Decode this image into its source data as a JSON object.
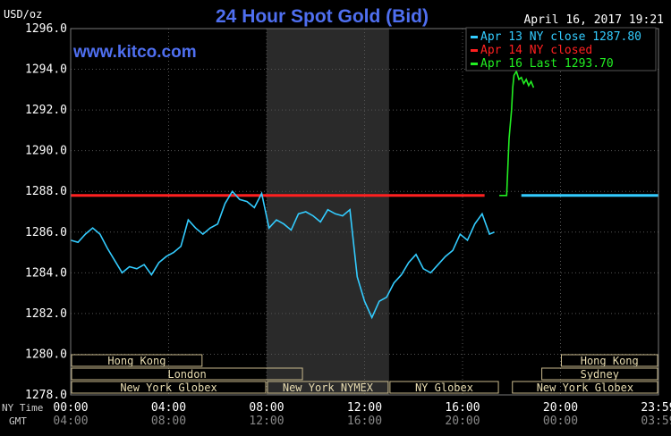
{
  "header": {
    "unit": "USD/oz",
    "title": "24 Hour Spot Gold (Bid)",
    "timestamp": "April 16, 2017 19:21",
    "watermark": "www.kitco.com"
  },
  "legend": [
    {
      "label": "Apr 13 NY close 1287.80",
      "color": "#33ccff"
    },
    {
      "label": "Apr 14 NY closed",
      "color": "#ff2020"
    },
    {
      "label": "Apr 16 Last 1293.70",
      "color": "#22ee22"
    }
  ],
  "axis_row_labels": {
    "ny_time": "NY Time",
    "gmt": "GMT"
  },
  "sessions": [
    {
      "label": "Hong Kong",
      "row": 0
    },
    {
      "label": "London",
      "row": 1
    },
    {
      "label": "New York Globex",
      "row": 2
    },
    {
      "label": "New York NYMEX",
      "row": 2
    },
    {
      "label": "NY Globex",
      "row": 2
    },
    {
      "label": "Hong Kong",
      "row": 0
    },
    {
      "label": "Sydney",
      "row": 1
    },
    {
      "label": "New York Globex",
      "row": 2
    }
  ],
  "chart_data": {
    "type": "line",
    "title": "24 Hour Spot Gold (Bid)",
    "ylabel": "USD/oz",
    "ylim": [
      1278.0,
      1296.0
    ],
    "xlim": [
      0,
      24
    ],
    "y_ticks": [
      "1278.0",
      "1280.0",
      "1282.0",
      "1284.0",
      "1286.0",
      "1288.0",
      "1290.0",
      "1292.0",
      "1294.0",
      "1296.0"
    ],
    "x_ticks": [
      {
        "ny": "00:00",
        "gmt": "04:00"
      },
      {
        "ny": "04:00",
        "gmt": "08:00"
      },
      {
        "ny": "08:00",
        "gmt": "12:00"
      },
      {
        "ny": "12:00",
        "gmt": "16:00"
      },
      {
        "ny": "16:00",
        "gmt": "20:00"
      },
      {
        "ny": "20:00",
        "gmt": "00:00"
      },
      {
        "ny": "23:59",
        "gmt": "03:59"
      }
    ],
    "shaded_region": [
      8.0,
      13.0
    ],
    "grid": true,
    "reference_lines": [
      {
        "name": "Apr 13 NY close",
        "value": 1287.8,
        "color": "#ff2020",
        "from": 0,
        "to": 16.9
      },
      {
        "name": "Apr 13 NY close",
        "value": 1287.8,
        "color": "#33ccff",
        "from": 18.4,
        "to": 24
      }
    ],
    "series": [
      {
        "name": "Apr 13 NY close 1287.80",
        "color": "#33ccff",
        "x": [
          0,
          0.3,
          0.6,
          0.9,
          1.2,
          1.5,
          1.8,
          2.1,
          2.4,
          2.7,
          3.0,
          3.3,
          3.6,
          3.9,
          4.2,
          4.5,
          4.8,
          5.1,
          5.4,
          5.7,
          6.0,
          6.3,
          6.6,
          6.9,
          7.2,
          7.5,
          7.8,
          8.1,
          8.4,
          8.7,
          9.0,
          9.3,
          9.6,
          9.9,
          10.2,
          10.5,
          10.8,
          11.1,
          11.4,
          11.7,
          12.0,
          12.3,
          12.6,
          12.9,
          13.2,
          13.5,
          13.8,
          14.1,
          14.4,
          14.7,
          15.0,
          15.3,
          15.6,
          15.9,
          16.2,
          16.5,
          16.8,
          17.1,
          17.3
        ],
        "values": [
          1285.6,
          1285.5,
          1285.9,
          1286.2,
          1285.9,
          1285.2,
          1284.6,
          1284.0,
          1284.3,
          1284.2,
          1284.4,
          1283.9,
          1284.5,
          1284.8,
          1285.0,
          1285.3,
          1286.6,
          1286.2,
          1285.9,
          1286.2,
          1286.4,
          1287.4,
          1288.0,
          1287.6,
          1287.5,
          1287.2,
          1287.9,
          1286.2,
          1286.6,
          1286.4,
          1286.1,
          1286.9,
          1287.0,
          1286.8,
          1286.5,
          1287.1,
          1286.9,
          1286.8,
          1287.1,
          1283.8,
          1282.6,
          1281.8,
          1282.6,
          1282.8,
          1283.5,
          1283.9,
          1284.5,
          1284.9,
          1284.2,
          1284.0,
          1284.4,
          1284.8,
          1285.1,
          1285.9,
          1285.6,
          1286.4,
          1286.9,
          1285.9,
          1286.0
        ]
      },
      {
        "name": "Apr 16 Last 1293.70",
        "color": "#22ee22",
        "x": [
          17.5,
          17.8,
          17.9,
          18.0,
          18.05,
          18.1,
          18.2,
          18.3,
          18.4,
          18.5,
          18.6,
          18.7,
          18.8,
          18.9
        ],
        "values": [
          1287.8,
          1287.8,
          1290.6,
          1292.0,
          1293.1,
          1293.7,
          1293.9,
          1293.5,
          1293.6,
          1293.3,
          1293.5,
          1293.2,
          1293.4,
          1293.1
        ]
      }
    ]
  }
}
